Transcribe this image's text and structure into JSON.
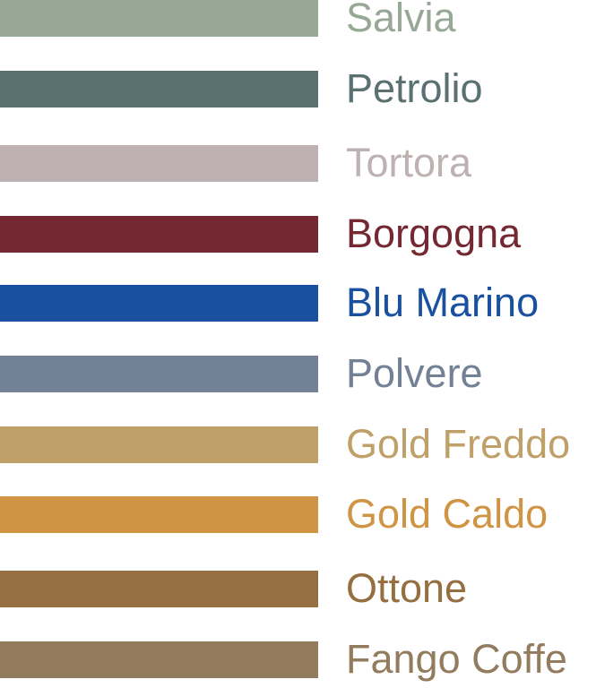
{
  "swatches": [
    {
      "name": "Salvia",
      "color": "#97a897"
    },
    {
      "name": "Petrolio",
      "color": "#5b7070"
    },
    {
      "name": "Tortora",
      "color": "#bdb1b1"
    },
    {
      "name": "Borgogna",
      "color": "#732832"
    },
    {
      "name": "Blu Marino",
      "color": "#1a50a0"
    },
    {
      "name": "Polvere",
      "color": "#738196"
    },
    {
      "name": "Gold Freddo",
      "color": "#bfa068"
    },
    {
      "name": "Gold Caldo",
      "color": "#cf9545"
    },
    {
      "name": "Ottone",
      "color": "#966f40"
    },
    {
      "name": "Fango Coffe",
      "color": "#937c5e"
    }
  ]
}
